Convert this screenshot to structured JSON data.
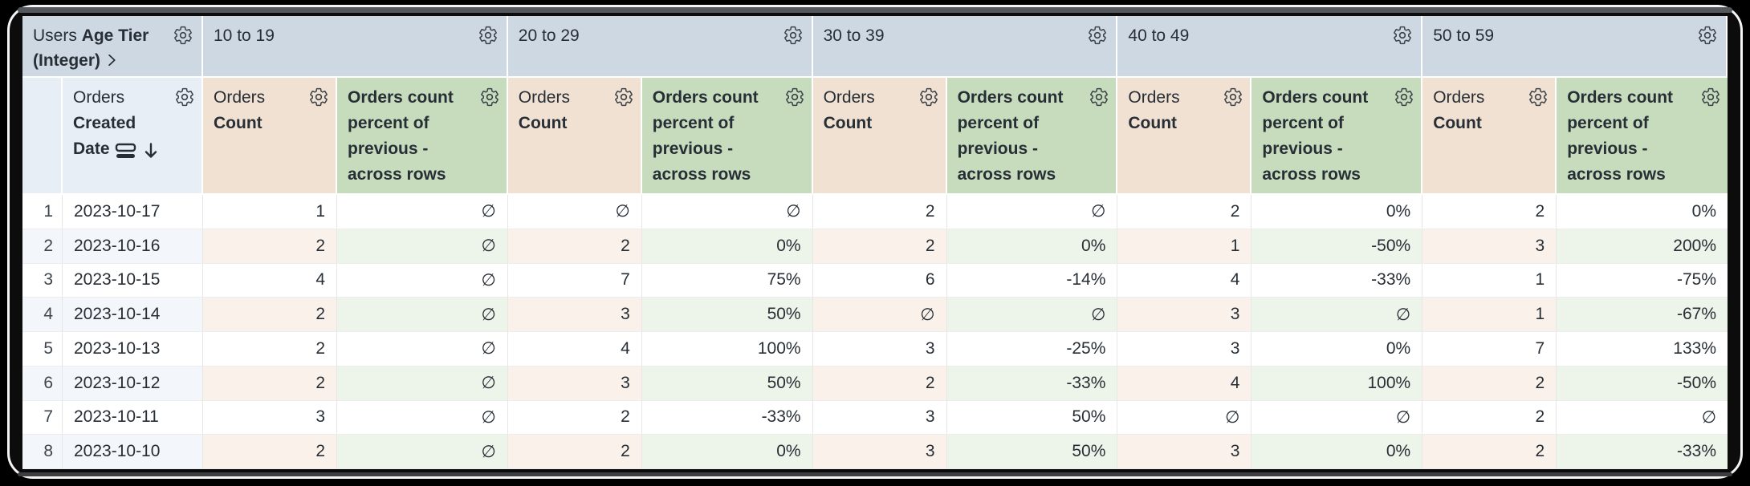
{
  "pivot": {
    "field_view": "Users",
    "field_name": "Age Tier (Integer)",
    "tiers": [
      "10 to 19",
      "20 to 29",
      "30 to 39",
      "40 to 49",
      "50 to 59"
    ]
  },
  "row_field": {
    "view": "Orders",
    "name": "Created Date",
    "sort_direction": "descending"
  },
  "measures": {
    "count_view": "Orders",
    "count_name": "Count",
    "percent_label": "Orders count percent of previous - across rows"
  },
  "icons": {
    "gear": "gear-icon",
    "expand_chevron": "chevron-right-icon",
    "sort_bars": "sort-bars-icon",
    "sort_arrow": "arrow-down-icon"
  },
  "colors": {
    "pivot_header_bg": "#cdd8e2",
    "row_header_bg": "#e8eef6",
    "count_header_bg": "#f1e1d2",
    "percent_header_bg": "#c7dcbd",
    "even_row_base": "#f3f6fa",
    "even_row_count": "#faf1ea",
    "even_row_percent": "#edf4ea",
    "text": "#272e35"
  },
  "null_symbol": "∅",
  "rows": [
    {
      "num": "1",
      "date": "2023-10-17",
      "values": [
        "1",
        "∅",
        "∅",
        "∅",
        "2",
        "∅",
        "2",
        "0%",
        "2",
        "0%"
      ]
    },
    {
      "num": "2",
      "date": "2023-10-16",
      "values": [
        "2",
        "∅",
        "2",
        "0%",
        "2",
        "0%",
        "1",
        "-50%",
        "3",
        "200%"
      ]
    },
    {
      "num": "3",
      "date": "2023-10-15",
      "values": [
        "4",
        "∅",
        "7",
        "75%",
        "6",
        "-14%",
        "4",
        "-33%",
        "1",
        "-75%"
      ]
    },
    {
      "num": "4",
      "date": "2023-10-14",
      "values": [
        "2",
        "∅",
        "3",
        "50%",
        "∅",
        "∅",
        "3",
        "∅",
        "1",
        "-67%"
      ]
    },
    {
      "num": "5",
      "date": "2023-10-13",
      "values": [
        "2",
        "∅",
        "4",
        "100%",
        "3",
        "-25%",
        "3",
        "0%",
        "7",
        "133%"
      ]
    },
    {
      "num": "6",
      "date": "2023-10-12",
      "values": [
        "2",
        "∅",
        "3",
        "50%",
        "2",
        "-33%",
        "4",
        "100%",
        "2",
        "-50%"
      ]
    },
    {
      "num": "7",
      "date": "2023-10-11",
      "values": [
        "3",
        "∅",
        "2",
        "-33%",
        "3",
        "50%",
        "∅",
        "∅",
        "2",
        "∅"
      ]
    },
    {
      "num": "8",
      "date": "2023-10-10",
      "values": [
        "2",
        "∅",
        "2",
        "0%",
        "3",
        "50%",
        "3",
        "0%",
        "2",
        "-33%"
      ]
    }
  ]
}
